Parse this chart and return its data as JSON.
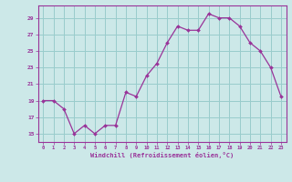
{
  "x": [
    0,
    1,
    2,
    3,
    4,
    5,
    6,
    7,
    8,
    9,
    10,
    11,
    12,
    13,
    14,
    15,
    16,
    17,
    18,
    19,
    20,
    21,
    22,
    23
  ],
  "y": [
    19,
    19,
    18,
    15,
    16,
    15,
    16,
    16,
    20,
    19.5,
    22,
    23.5,
    26,
    28,
    27.5,
    27.5,
    29.5,
    29,
    29,
    28,
    26,
    25,
    23,
    19.5
  ],
  "line_color": "#993399",
  "marker_color": "#993399",
  "bg_color": "#cce8e8",
  "grid_color": "#99cccc",
  "xlabel": "Windchill (Refroidissement éolien,°C)",
  "xlabel_color": "#993399",
  "tick_color": "#993399",
  "ylim": [
    14,
    30.5
  ],
  "xlim": [
    -0.5,
    23.5
  ],
  "yticks": [
    15,
    17,
    19,
    21,
    23,
    25,
    27,
    29
  ],
  "xticks": [
    0,
    1,
    2,
    3,
    4,
    5,
    6,
    7,
    8,
    9,
    10,
    11,
    12,
    13,
    14,
    15,
    16,
    17,
    18,
    19,
    20,
    21,
    22,
    23
  ]
}
